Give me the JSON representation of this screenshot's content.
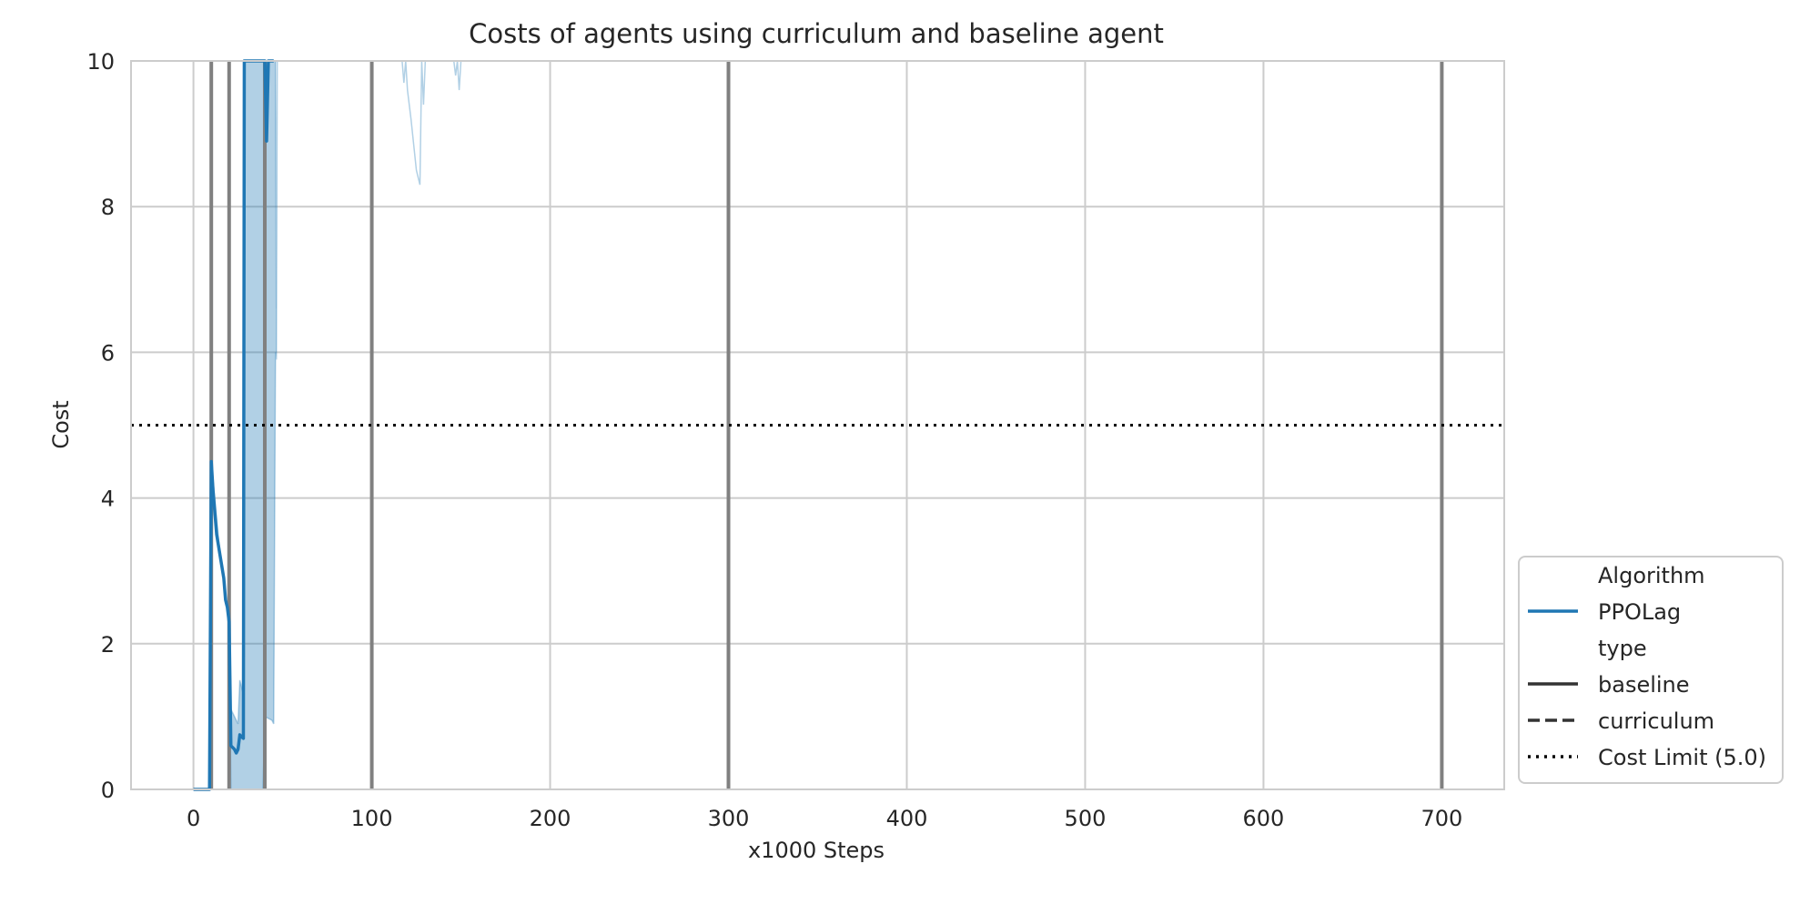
{
  "chart_data": {
    "type": "line",
    "title": "Costs of agents using curriculum and baseline agent",
    "xlabel": "x1000 Steps",
    "ylabel": "Cost",
    "xlim": [
      -35,
      735
    ],
    "ylim": [
      0,
      10
    ],
    "x_ticks": [
      0,
      100,
      200,
      300,
      400,
      500,
      600,
      700
    ],
    "y_ticks": [
      0,
      2,
      4,
      6,
      8,
      10
    ],
    "grid": true,
    "legend_position": "outside-lower-right",
    "colors": {
      "series": "#1f77b4",
      "band": "#1f77b4",
      "vertical_markers": "#808080",
      "cost_limit": "#000000",
      "grid": "#cccccc",
      "style_key": "#333333"
    },
    "vertical_markers_x": [
      10,
      20,
      40,
      100,
      300,
      700
    ],
    "cost_limit": 5.0,
    "series": [
      {
        "name": "PPOLag",
        "type": "baseline",
        "line_style": "solid",
        "points": [
          [
            0,
            0
          ],
          [
            5,
            0
          ],
          [
            9,
            0
          ],
          [
            10,
            4.5
          ],
          [
            11,
            4.1
          ],
          [
            13,
            3.5
          ],
          [
            15,
            3.2
          ],
          [
            17,
            2.9
          ],
          [
            18,
            2.6
          ],
          [
            19,
            2.5
          ],
          [
            20,
            2.3
          ],
          [
            21,
            0.6
          ],
          [
            23,
            0.55
          ],
          [
            24,
            0.5
          ],
          [
            25,
            0.55
          ],
          [
            26,
            0.75
          ],
          [
            27,
            0.72
          ],
          [
            28,
            0.7
          ],
          [
            28.5,
            10
          ],
          [
            30,
            10
          ],
          [
            40,
            10
          ],
          [
            41,
            8.9
          ],
          [
            42,
            10
          ],
          [
            45,
            10
          ]
        ],
        "band": [
          [
            0,
            0,
            0
          ],
          [
            9,
            0,
            0
          ],
          [
            10,
            4.5,
            4.5
          ],
          [
            15,
            3.2,
            3.2
          ],
          [
            20,
            2.3,
            2.3
          ],
          [
            21,
            1.1,
            0
          ],
          [
            25,
            0.9,
            0
          ],
          [
            26,
            1.5,
            0
          ],
          [
            27,
            1.4,
            0
          ],
          [
            28,
            1.3,
            0
          ],
          [
            28.5,
            10,
            0
          ],
          [
            39,
            10,
            0
          ],
          [
            40,
            10,
            1.0
          ],
          [
            44,
            10,
            0.95
          ],
          [
            45,
            10,
            0.9
          ],
          [
            46,
            10,
            6.0
          ],
          [
            46.5,
            6.6,
            5.9
          ],
          [
            47,
            10,
            10
          ],
          [
            117,
            10,
            10
          ],
          [
            118,
            9.7,
            9.7
          ],
          [
            119,
            10,
            10
          ],
          [
            120,
            9.6,
            9.6
          ],
          [
            122,
            9.2,
            9.2
          ],
          [
            125,
            8.5,
            8.5
          ],
          [
            126,
            8.4,
            8.4
          ],
          [
            127,
            8.3,
            8.3
          ],
          [
            128,
            10,
            10
          ],
          [
            129,
            9.4,
            9.4
          ],
          [
            130,
            10,
            10
          ],
          [
            146,
            10,
            10
          ],
          [
            147,
            9.8,
            9.8
          ],
          [
            148,
            10,
            10
          ],
          [
            149,
            9.6,
            9.6
          ],
          [
            150,
            10,
            10
          ]
        ]
      }
    ],
    "legend": {
      "items": [
        {
          "label": "Algorithm",
          "style": "header"
        },
        {
          "label": "PPOLag",
          "style": "series"
        },
        {
          "label": "type",
          "style": "header"
        },
        {
          "label": "baseline",
          "style": "solid"
        },
        {
          "label": "curriculum",
          "style": "dashed"
        },
        {
          "label": "Cost Limit (5.0)",
          "style": "dotted"
        }
      ]
    }
  }
}
